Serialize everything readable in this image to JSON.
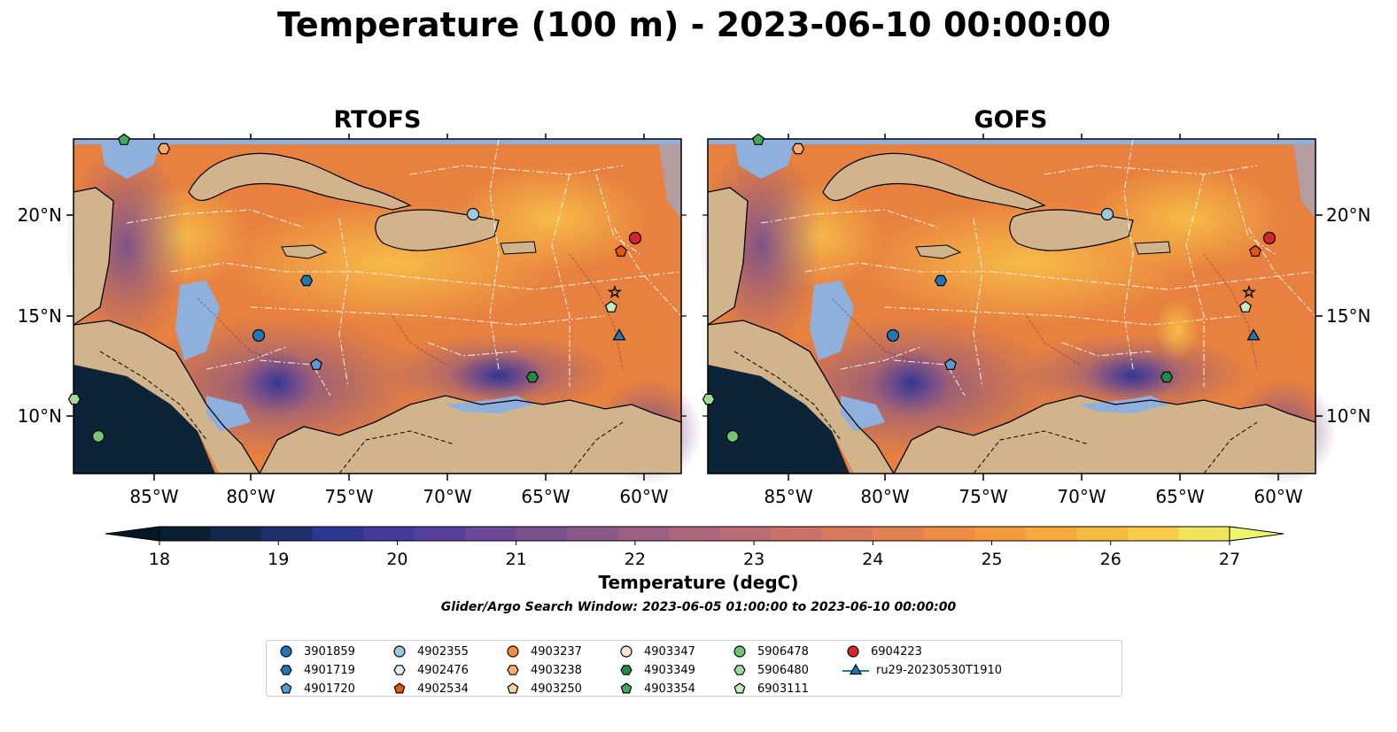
{
  "title": "Temperature (100 m) - 2023-06-10 00:00:00",
  "panels": [
    {
      "title": "RTOFS"
    },
    {
      "title": "GOFS"
    }
  ],
  "axes": {
    "lon_ticks": [
      "85°W",
      "80°W",
      "75°W",
      "70°W",
      "65°W",
      "60°W"
    ],
    "lat_ticks": [
      "20°N",
      "15°N",
      "10°N"
    ]
  },
  "colorbar": {
    "label": "Temperature (degC)",
    "min": 18,
    "max": 27,
    "ticks": [
      "18",
      "19",
      "20",
      "21",
      "22",
      "23",
      "24",
      "25",
      "26",
      "27"
    ],
    "colors": [
      "#0b1f33",
      "#14284d",
      "#1f2f6e",
      "#2e3592",
      "#43399e",
      "#583f9e",
      "#6b4897",
      "#7b508f",
      "#8c5889",
      "#9c5f83",
      "#ad667c",
      "#bc6d73",
      "#ca7268",
      "#d8795c",
      "#e58150",
      "#ef8c44",
      "#f59a3c",
      "#f8a93c",
      "#f9ba40",
      "#f8cd47",
      "#f1e35a"
    ],
    "extend_low": "#061726",
    "extend_high": "#ecf86a"
  },
  "search_window": "Glider/Argo Search Window: 2023-06-05 01:00:00 to 2023-06-10 00:00:00",
  "legend": [
    {
      "label": "3901859",
      "marker": "circle",
      "color": "#1f77b4"
    },
    {
      "label": "4901719",
      "marker": "hexagon",
      "color": "#1f77b4"
    },
    {
      "label": "4901720",
      "marker": "pentagon",
      "color": "#5b9bd5"
    },
    {
      "label": "4902355",
      "marker": "circle",
      "color": "#9ecae1"
    },
    {
      "label": "4902476",
      "marker": "hexagon",
      "color": "#deebf7"
    },
    {
      "label": "4902534",
      "marker": "pentagon",
      "color": "#e6550d"
    },
    {
      "label": "4903237",
      "marker": "circle",
      "color": "#fd8d3c"
    },
    {
      "label": "4903238",
      "marker": "hexagon",
      "color": "#fdae6b"
    },
    {
      "label": "4903250",
      "marker": "pentagon",
      "color": "#fdd0a2"
    },
    {
      "label": "4903347",
      "marker": "circle",
      "color": "#fee6ce"
    },
    {
      "label": "4903349",
      "marker": "hexagon",
      "color": "#238b45"
    },
    {
      "label": "4903354",
      "marker": "pentagon",
      "color": "#41ab5d"
    },
    {
      "label": "5906478",
      "marker": "circle",
      "color": "#74c476"
    },
    {
      "label": "5906480",
      "marker": "hexagon",
      "color": "#a1d99b"
    },
    {
      "label": "6903111",
      "marker": "pentagon",
      "color": "#c7e9c0"
    },
    {
      "label": "6904223",
      "marker": "circle",
      "color": "#d62728"
    },
    {
      "label": "ru29-20230530T1910",
      "marker": "triangle-line",
      "color": "#1f77b4"
    }
  ]
}
